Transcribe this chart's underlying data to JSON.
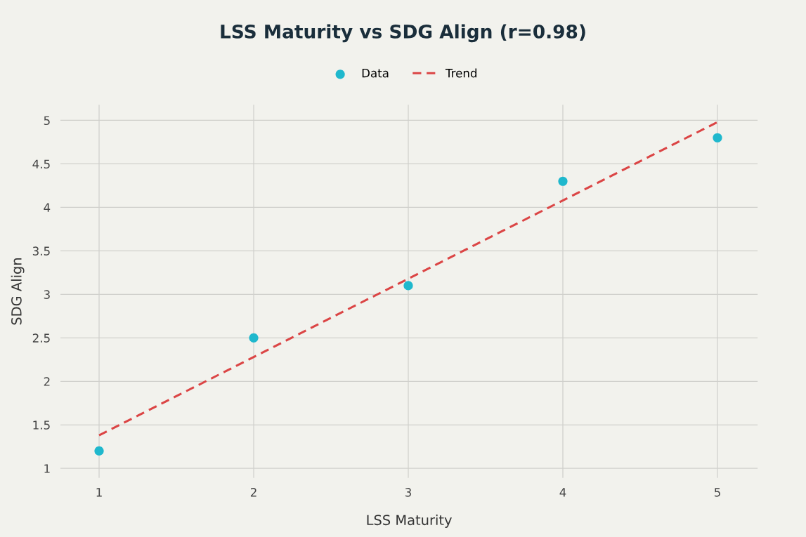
{
  "chart_data": {
    "type": "scatter",
    "title": "LSS Maturity vs SDG Align (r=0.98)",
    "xlabel": "LSS Maturity",
    "ylabel": "SDG Align",
    "series": [
      {
        "name": "Data",
        "color": "#1fb8cd",
        "x": [
          1,
          2,
          3,
          4,
          5
        ],
        "values": [
          1.2,
          2.5,
          3.1,
          4.3,
          4.8
        ],
        "marker": "circle"
      },
      {
        "name": "Trend",
        "type": "line",
        "color": "#db4545",
        "x": [
          1,
          5
        ],
        "values": [
          1.38,
          4.98
        ],
        "line_style": "dashed",
        "marker": "none"
      }
    ],
    "xlim": [
      0.75,
      5.26
    ],
    "ylim": [
      0.89,
      5.18
    ],
    "xticks": [
      1,
      2,
      3,
      4,
      5
    ],
    "yticks": [
      1,
      1.5,
      2,
      2.5,
      3,
      3.5,
      4,
      4.5,
      5
    ],
    "grid": true,
    "legend": "top"
  }
}
